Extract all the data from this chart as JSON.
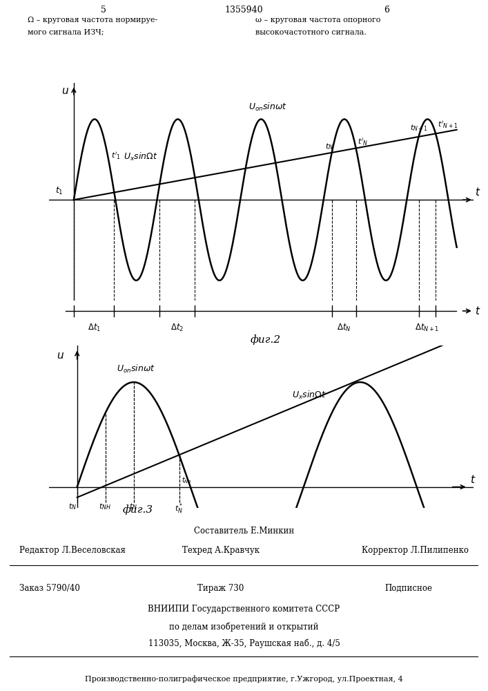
{
  "fig_width": 7.07,
  "fig_height": 10.0,
  "page_left": "5",
  "page_right": "6",
  "patent_num": "1355940",
  "text_left_line1": "Ω – круговая частота нормируе-",
  "text_left_line2": "мого сигнала ИЗЧ;",
  "text_right_line1": "ω – круговая частота опорного",
  "text_right_line2": "высокочастотного сигнала.",
  "fig2_label": "фиг.2",
  "fig3_label": "фиг.3",
  "footer_composer": "Составитель Е.Минкин",
  "footer_editor": "Редактор Л.Веселовская",
  "footer_tech": "Техред А.Кравчук",
  "footer_corrector": "Корректор Л.Пилипенко",
  "footer_order": "Заказ 5790/40",
  "footer_circulation": "Тираж 730",
  "footer_subscription": "Подписное",
  "footer_vniip1": "ВНИИПИ Государственного комитета СССР",
  "footer_vniip2": "по делам изобретений и открытий",
  "footer_vniip3": "113035, Москва, Ж-35, Раушская наб., д. 4/5",
  "footer_last": "Производственно-полиграфическое предприятие, г.Ужгород, ул.Проектная, 4"
}
